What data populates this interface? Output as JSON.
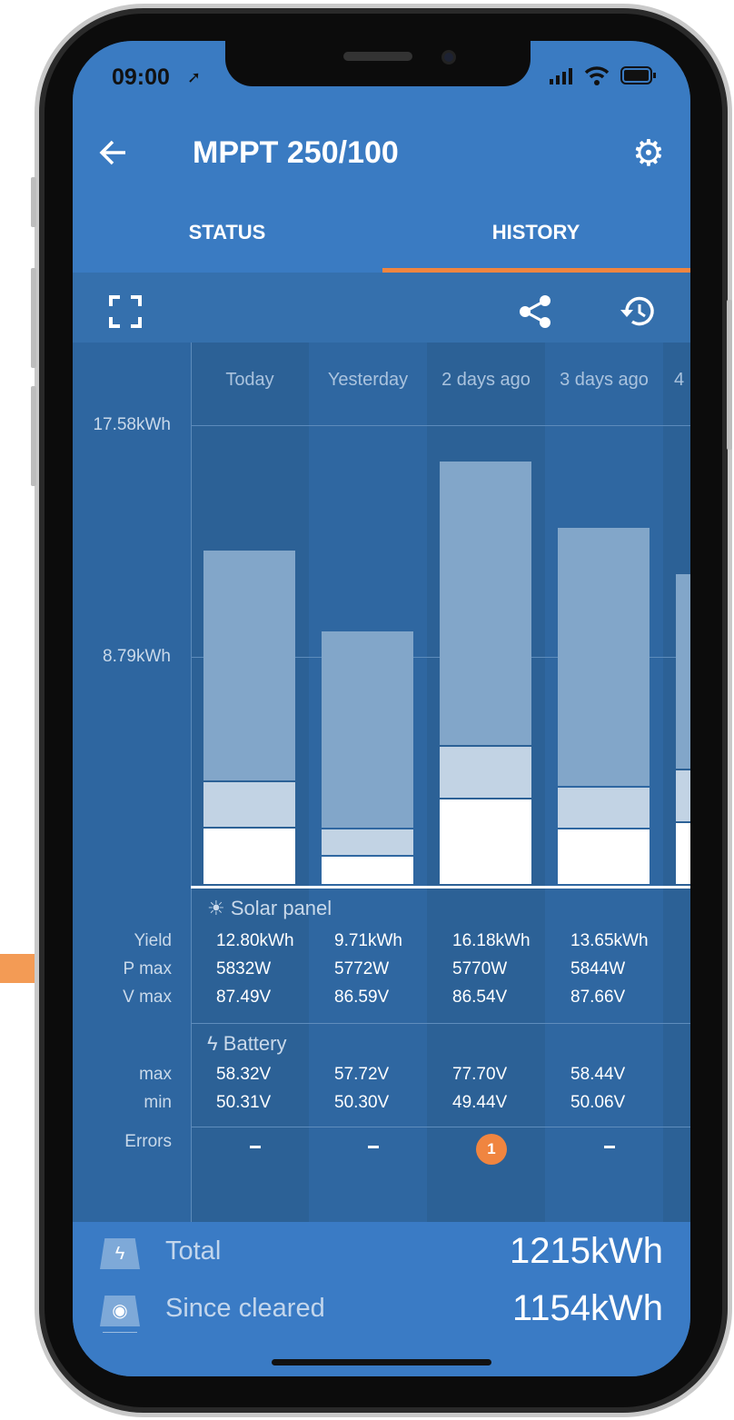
{
  "status_bar": {
    "time": "09:00"
  },
  "header": {
    "title": "MPPT 250/100",
    "tabs": [
      {
        "label": "STATUS",
        "active": false
      },
      {
        "label": "HISTORY",
        "active": true
      }
    ]
  },
  "icons": [
    "back-arrow-icon",
    "gear-icon",
    "fullscreen-icon",
    "share-icon",
    "history-icon",
    "location-arrow-icon",
    "signal-icon",
    "wifi-icon",
    "battery-icon",
    "sun-icon",
    "bolt-icon"
  ],
  "colors": {
    "accent": "#f08540",
    "primary": "#3a7bc2",
    "bar_main": "#82a6c9",
    "bar_mid": "#c2d3e4",
    "bar_low": "#ffffff"
  },
  "chart_data": {
    "type": "bar",
    "stacked": true,
    "categories": [
      "Today",
      "Yesterday",
      "2 days ago",
      "3 days ago",
      "4"
    ],
    "y_ticks": [
      "8.79kWh",
      "17.58kWh"
    ],
    "ylim": [
      0,
      17.58
    ],
    "series": [
      {
        "values": [
          2.2,
          1.1,
          3.3,
          2.15,
          2.4
        ]
      },
      {
        "values": [
          1.75,
          1.05,
          2.0,
          1.6,
          2.0
        ]
      },
      {
        "values": [
          8.85,
          7.56,
          10.88,
          9.9,
          7.5
        ]
      }
    ]
  },
  "table": {
    "solar_title": "Solar panel",
    "battery_title": "Battery",
    "labels": {
      "yield": "Yield",
      "pmax": "P max",
      "vmax": "V max",
      "max": "max",
      "min": "min",
      "errors": "Errors"
    },
    "days": [
      {
        "yield": "12.80kWh",
        "pmax": "5832W",
        "vmax": "87.49V",
        "max": "58.32V",
        "min": "50.31V",
        "errors": "-"
      },
      {
        "yield": "9.71kWh",
        "pmax": "5772W",
        "vmax": "86.59V",
        "max": "57.72V",
        "min": "50.30V",
        "errors": "-"
      },
      {
        "yield": "16.18kWh",
        "pmax": "5770W",
        "vmax": "86.54V",
        "max": "77.70V",
        "min": "49.44V",
        "errors": "1"
      },
      {
        "yield": "13.65kWh",
        "pmax": "5844W",
        "vmax": "87.66V",
        "max": "58.44V",
        "min": "50.06V",
        "errors": "-"
      }
    ]
  },
  "totals": {
    "total_label": "Total",
    "total_value": "1215kWh",
    "cleared_label": "Since cleared",
    "cleared_value": "1154kWh"
  }
}
